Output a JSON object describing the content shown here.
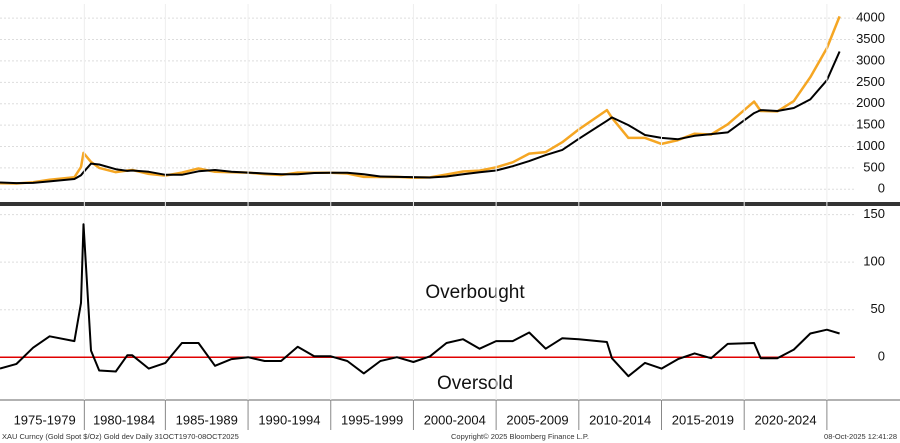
{
  "chart_data": [
    {
      "type": "line",
      "xlim": [
        1975,
        2026.7
      ],
      "ylim": [
        -250,
        4330
      ],
      "yticks": [
        0,
        500,
        1000,
        1500,
        2000,
        2500,
        3000,
        3500,
        4000
      ],
      "grid": true,
      "series": [
        {
          "color": "#f5a623",
          "x": [
            1975,
            1976,
            1977,
            1978,
            1979.5,
            1979.9,
            1980.05,
            1980.5,
            1981,
            1982,
            1982.7,
            1983,
            1984,
            1985,
            1986,
            1987,
            1988,
            1989,
            1990,
            1991,
            1992,
            1993,
            1994,
            1995,
            1996,
            1997,
            1998,
            1999,
            2000,
            2001,
            2002,
            2003,
            2004,
            2005,
            2006,
            2007,
            2008,
            2009,
            2010,
            2011.7,
            2012,
            2013,
            2014,
            2015,
            2016,
            2017,
            2018,
            2019,
            2020.6,
            2021,
            2022,
            2023,
            2024,
            2025,
            2025.77
          ],
          "values": [
            140,
            135,
            165,
            225,
            280,
            520,
            850,
            640,
            500,
            400,
            440,
            450,
            360,
            320,
            390,
            485,
            410,
            400,
            390,
            355,
            335,
            390,
            385,
            387,
            370,
            290,
            288,
            290,
            272,
            278,
            345,
            415,
            438,
            515,
            630,
            835,
            870,
            1100,
            1400,
            1850,
            1670,
            1200,
            1200,
            1060,
            1150,
            1300,
            1280,
            1520,
            2050,
            1830,
            1820,
            2060,
            2620,
            3300,
            4040
          ]
        },
        {
          "color": "#000000",
          "x": [
            1975,
            1976,
            1977,
            1978,
            1979.5,
            1979.9,
            1980.05,
            1980.5,
            1981,
            1982,
            1982.7,
            1983,
            1984,
            1985,
            1986,
            1987,
            1988,
            1989,
            1990,
            1991,
            1992,
            1993,
            1994,
            1995,
            1996,
            1997,
            1998,
            1999,
            2000,
            2001,
            2002,
            2003,
            2004,
            2005,
            2006,
            2007,
            2008,
            2009,
            2010,
            2011.7,
            2012,
            2013,
            2014,
            2015,
            2016,
            2017,
            2018,
            2019,
            2020.6,
            2021,
            2022,
            2023,
            2024,
            2025,
            2025.77
          ],
          "values": [
            160,
            145,
            150,
            185,
            240,
            330,
            400,
            600,
            580,
            470,
            430,
            440,
            410,
            340,
            340,
            420,
            450,
            410,
            390,
            370,
            350,
            350,
            380,
            385,
            385,
            350,
            300,
            290,
            285,
            275,
            300,
            350,
            400,
            440,
            540,
            660,
            800,
            920,
            1180,
            1600,
            1680,
            1500,
            1270,
            1200,
            1170,
            1250,
            1290,
            1330,
            1780,
            1850,
            1830,
            1900,
            2100,
            2550,
            3220
          ]
        }
      ]
    },
    {
      "type": "line",
      "xlim": [
        1975,
        2026.7
      ],
      "ylim": [
        -45,
        157
      ],
      "yticks": [
        0,
        50,
        100,
        150
      ],
      "grid": true,
      "reference_line": {
        "value": 0,
        "color": "#e00000"
      },
      "annotations": [
        "Overbought",
        "Oversold"
      ],
      "xticks": [
        {
          "value": 1977.7,
          "label": "1975-1979"
        },
        {
          "value": 1982.5,
          "label": "1980-1984"
        },
        {
          "value": 1987.5,
          "label": "1985-1989"
        },
        {
          "value": 1992.5,
          "label": "1990-1994"
        },
        {
          "value": 1997.5,
          "label": "1995-1999"
        },
        {
          "value": 2002.5,
          "label": "2000-2004"
        },
        {
          "value": 2007.5,
          "label": "2005-2009"
        },
        {
          "value": 2012.5,
          "label": "2010-2014"
        },
        {
          "value": 2017.5,
          "label": "2015-2019"
        },
        {
          "value": 2022.5,
          "label": "2020-2024"
        }
      ],
      "series": [
        {
          "color": "#000000",
          "x": [
            1975,
            1976,
            1977,
            1978,
            1979.5,
            1979.9,
            1980.05,
            1980.5,
            1981,
            1982,
            1982.7,
            1983,
            1984,
            1985,
            1986,
            1987,
            1988,
            1989,
            1990,
            1991,
            1992,
            1993,
            1994,
            1995,
            1996,
            1997,
            1998,
            1999,
            2000,
            2001,
            2002,
            2003,
            2004,
            2005,
            2006,
            2007,
            2008,
            2009,
            2010,
            2011.7,
            2012,
            2013,
            2014,
            2015,
            2016,
            2017,
            2018,
            2019,
            2020.6,
            2021,
            2022,
            2023,
            2024,
            2025,
            2025.77
          ],
          "values": [
            -12,
            -7,
            10,
            22,
            17,
            57,
            140,
            7,
            -14,
            -15,
            2,
            2,
            -12,
            -6,
            15,
            15,
            -9,
            -2,
            0,
            -4,
            -4,
            11,
            1,
            1,
            -4,
            -17,
            -4,
            0,
            -5,
            1,
            15,
            19,
            9,
            17,
            17,
            26,
            9,
            20,
            19,
            16,
            -1,
            -20,
            -6,
            -12,
            -2,
            4,
            -1,
            14,
            15,
            -1,
            -1,
            8,
            25,
            29,
            25
          ]
        }
      ]
    }
  ],
  "footer": {
    "left": "XAU Curncy (Gold Spot $/Oz) Gold dev Daily 31OCT1970-08OCT2025",
    "center": "Copyright© 2025 Bloomberg Finance L.P.",
    "right": "08-Oct-2025 12:41:28"
  }
}
